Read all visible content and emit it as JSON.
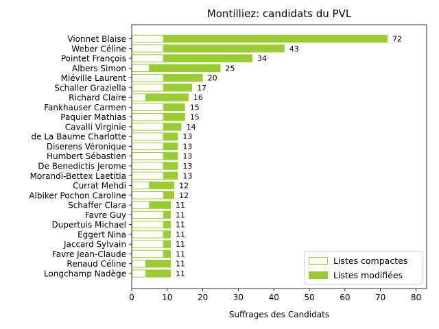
{
  "chart_data": {
    "type": "bar",
    "orientation": "horizontal",
    "stacked": true,
    "title": "Montilliez: candidats du PVL",
    "xlabel": "Suffrages des Candidats",
    "ylabel": "",
    "xlim": [
      0,
      83
    ],
    "xticks": [
      0,
      10,
      20,
      30,
      40,
      50,
      60,
      70,
      80
    ],
    "grid": false,
    "legend_position": "lower-right",
    "categories": [
      "Vionnet Blaise",
      "Weber Céline",
      "Pointet François",
      "Albers Simon",
      "Miéville Laurent",
      "Schaller Graziella",
      "Richard Claire",
      "Fankhauser Carmen",
      "Paquier Mathias",
      "Cavalli Virginie",
      "de La Baume Charlotte",
      "Diserens Véronique",
      "Humbert Sébastien",
      "De Benedictis Jerome",
      "Morandi-Bettex Laetitia",
      "Currat Mehdi",
      "Albiker Pochon Caroline",
      "Schaffer Clara",
      "Favre Guy",
      "Dupertuis Michael",
      "Eggert Nina",
      "Jaccard Sylvain",
      "Favre Jean-Claude",
      "Renaud Céline",
      "Longchamp Nadège"
    ],
    "series": [
      {
        "name": "Listes compactes",
        "color": "#9acd32",
        "style": "outline",
        "values": [
          9,
          9,
          9,
          5,
          9,
          9,
          4,
          9,
          9,
          9,
          9,
          9,
          9,
          9,
          9,
          5,
          9,
          5,
          9,
          9,
          9,
          9,
          9,
          4,
          4
        ]
      },
      {
        "name": "Listes modifiées",
        "color": "#9acd32",
        "style": "filled",
        "values": [
          63,
          34,
          25,
          20,
          11,
          8,
          12,
          6,
          6,
          5,
          4,
          4,
          4,
          4,
          4,
          7,
          3,
          6,
          2,
          2,
          2,
          2,
          2,
          7,
          7
        ]
      }
    ],
    "totals": [
      72,
      43,
      34,
      25,
      20,
      17,
      16,
      15,
      15,
      14,
      13,
      13,
      13,
      13,
      13,
      12,
      12,
      11,
      11,
      11,
      11,
      11,
      11,
      11,
      11
    ]
  }
}
